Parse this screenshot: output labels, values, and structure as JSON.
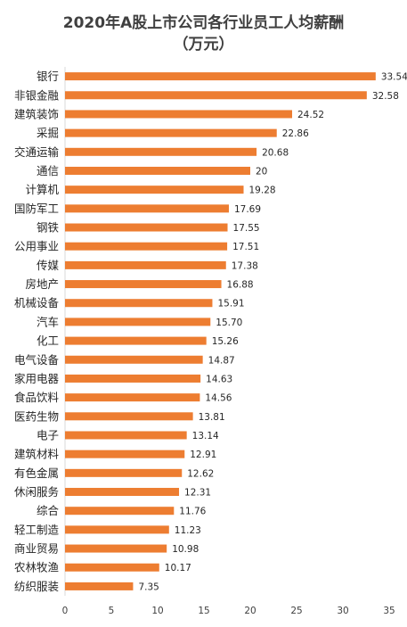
{
  "chart_data": {
    "type": "bar",
    "orientation": "horizontal",
    "title": "2020年A股上市公司各行业员工人均薪酬",
    "subtitle": "（万元）",
    "categories": [
      "银行",
      "非银金融",
      "建筑装饰",
      "采掘",
      "交通运输",
      "通信",
      "计算机",
      "国防军工",
      "钢铁",
      "公用事业",
      "传媒",
      "房地产",
      "机械设备",
      "汽车",
      "化工",
      "电气设备",
      "家用电器",
      "食品饮料",
      "医药生物",
      "电子",
      "建筑材料",
      "有色金属",
      "休闲服务",
      "综合",
      "轻工制造",
      "商业贸易",
      "农林牧渔",
      "纺织服装"
    ],
    "values": [
      33.54,
      32.58,
      24.52,
      22.86,
      20.68,
      20,
      19.28,
      17.69,
      17.55,
      17.51,
      17.38,
      16.88,
      15.91,
      15.7,
      15.26,
      14.87,
      14.63,
      14.56,
      13.81,
      13.14,
      12.91,
      12.62,
      12.31,
      11.76,
      11.23,
      10.98,
      10.17,
      7.35
    ],
    "value_labels": [
      "33.54",
      "32.58",
      "24.52",
      "22.86",
      "20.68",
      "20",
      "19.28",
      "17.69",
      "17.55",
      "17.51",
      "17.38",
      "16.88",
      "15.91",
      "15.70",
      "15.26",
      "14.87",
      "14.63",
      "14.56",
      "13.81",
      "13.14",
      "12.91",
      "12.62",
      "12.31",
      "11.76",
      "11.23",
      "10.98",
      "10.17",
      "7.35"
    ],
    "xlim": [
      0,
      35
    ],
    "xticks": [
      "0",
      "5",
      "10",
      "15",
      "20",
      "25",
      "30",
      "35"
    ],
    "grid": false,
    "bar_color": "#ED7D31"
  }
}
